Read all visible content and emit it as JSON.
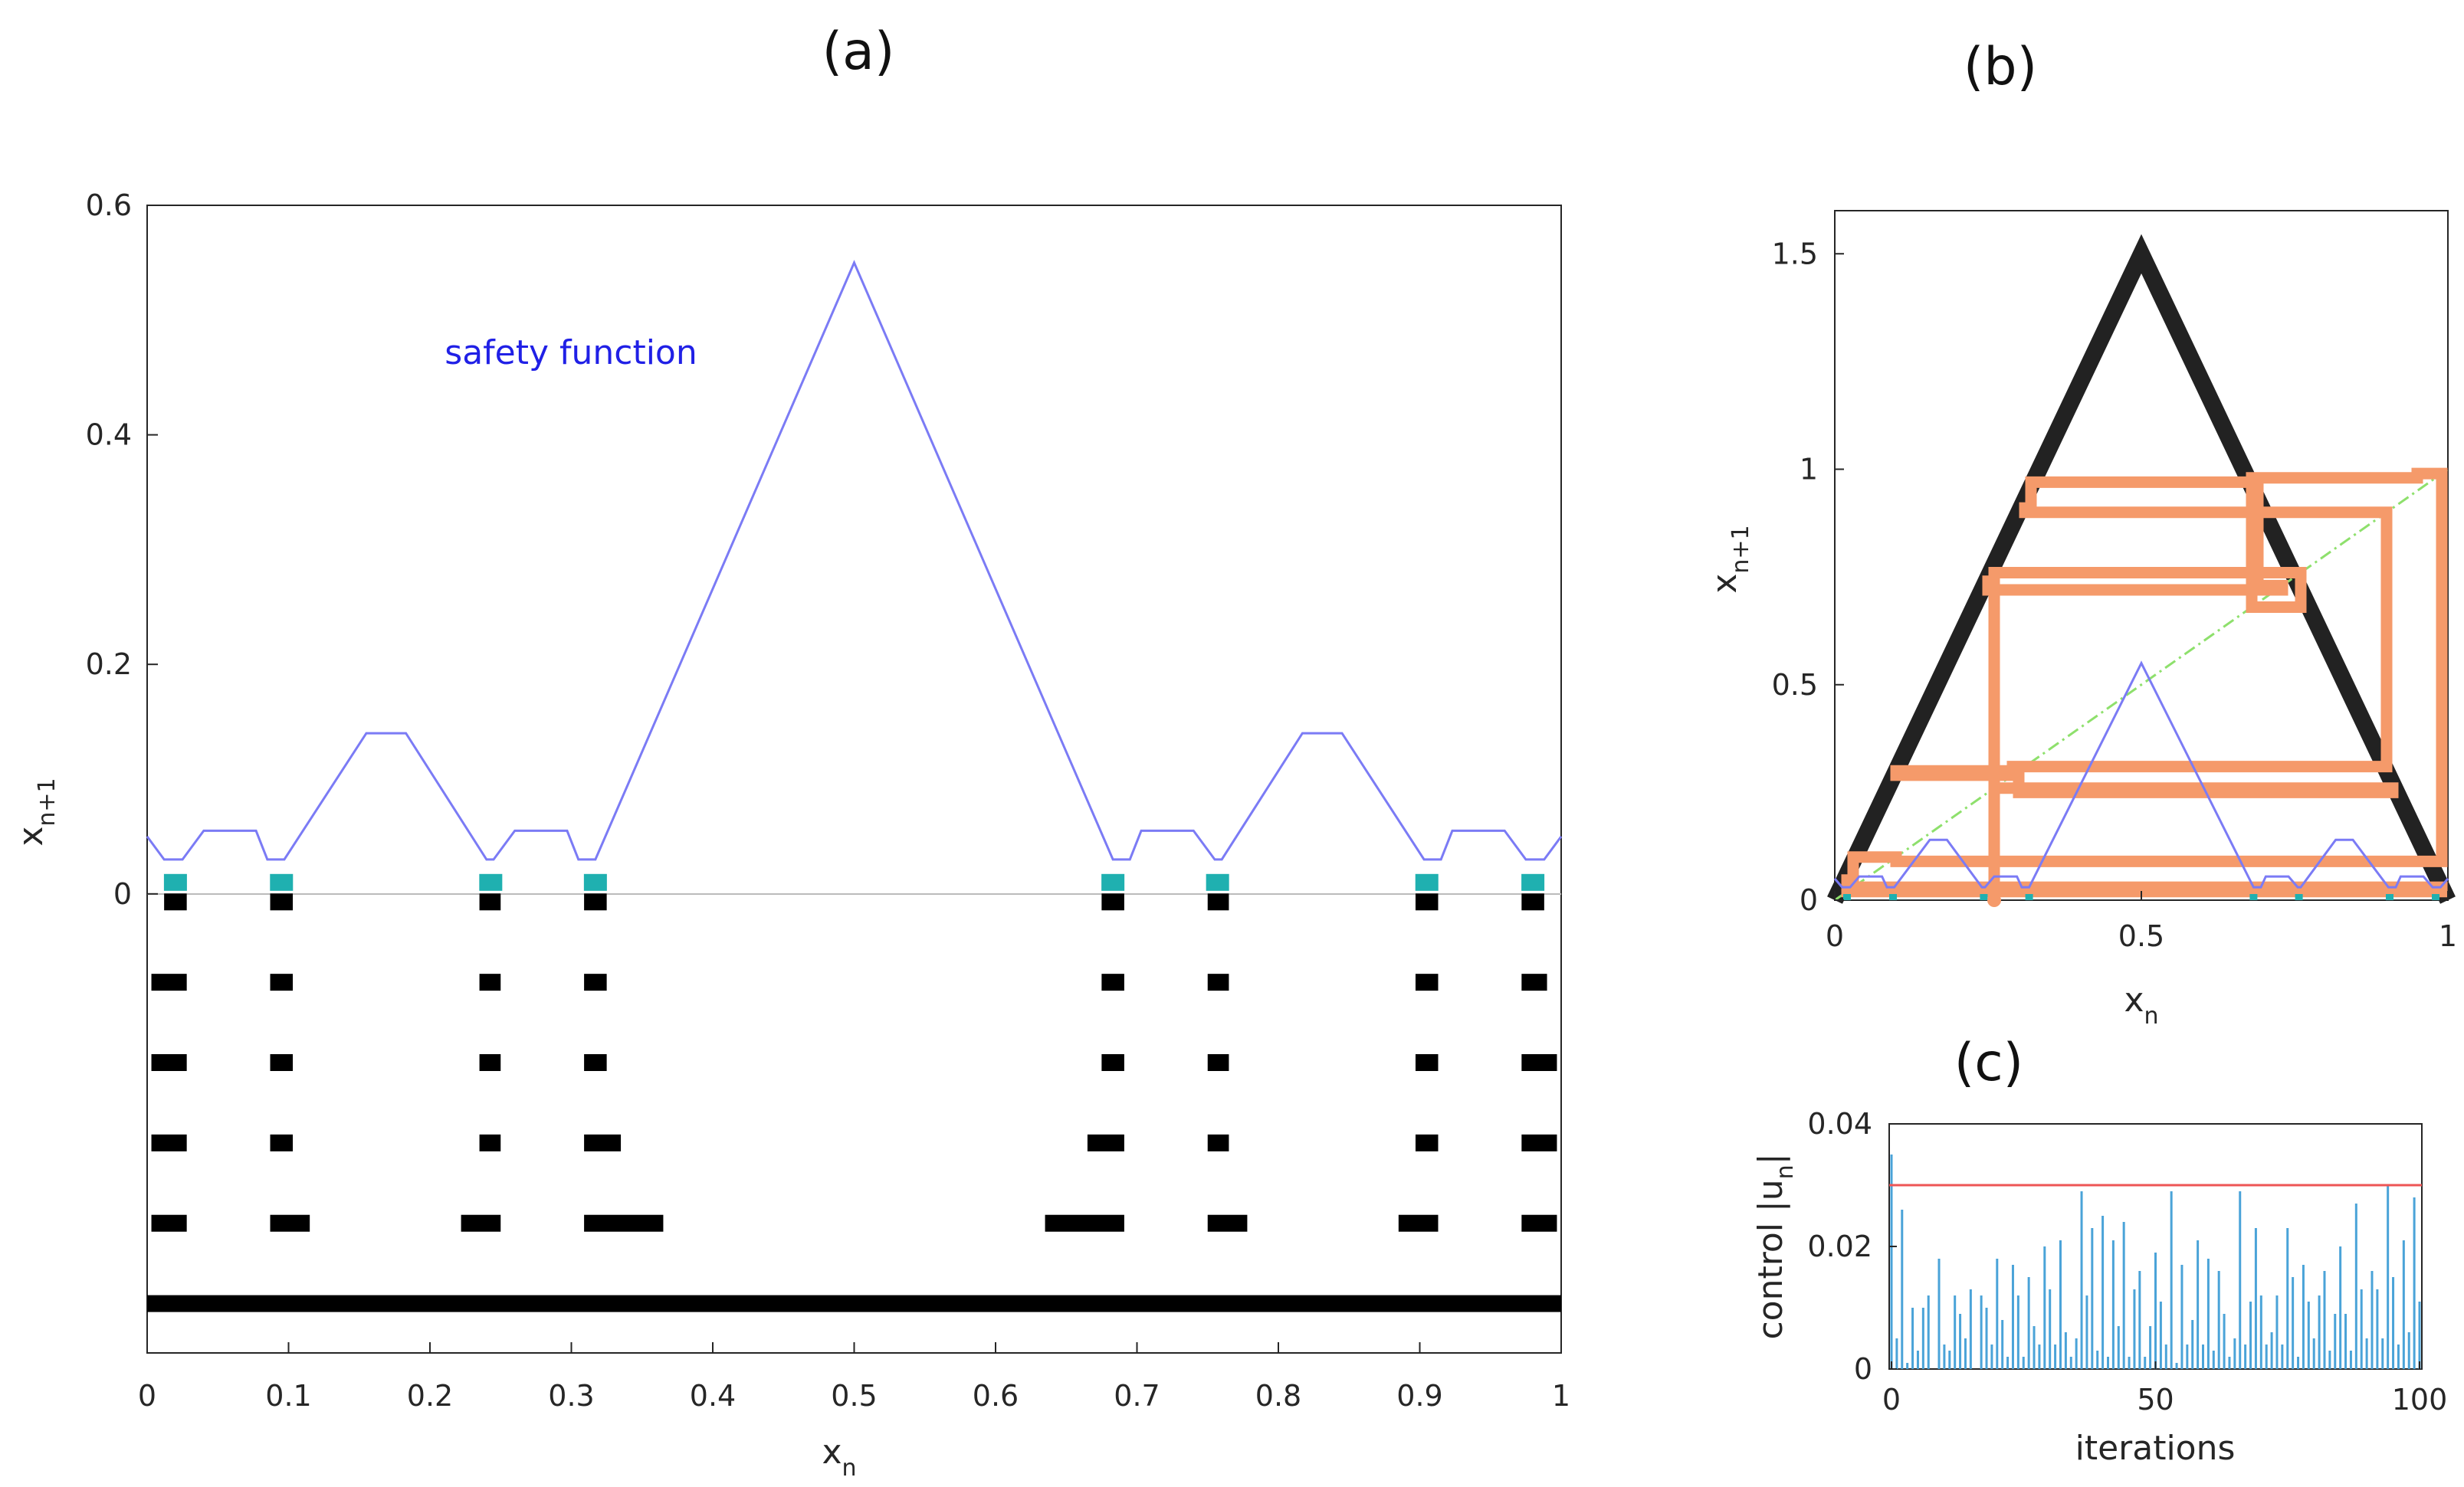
{
  "colors": {
    "axis": "#262626",
    "safety": "#7b7bf5",
    "annotation": "#2020e6",
    "black": "#000000",
    "teal": "#1fb0b0",
    "orange": "#f59a6a",
    "diag": "#8ee06c",
    "orbit": "#222222",
    "stem": "#4aa3d8",
    "limit": "#ee5555"
  },
  "chart_data": [
    {
      "panel": "(a)",
      "type": "line",
      "xlabel": "x",
      "xlabel_sub": "n",
      "ylabel": "x",
      "ylabel_sub": "n+1",
      "xlim": [
        0,
        1
      ],
      "ylim": [
        -0.4,
        0.6
      ],
      "xticks": [
        0,
        0.1,
        0.2,
        0.3,
        0.4,
        0.5,
        0.6,
        0.7,
        0.8,
        0.9,
        1
      ],
      "xtick_labels": [
        "0",
        "0.1",
        "0.2",
        "0.3",
        "0.4",
        "0.5",
        "0.6",
        "0.7",
        "0.8",
        "0.9",
        "1"
      ],
      "yticks": [
        0,
        0.2,
        0.4,
        0.6
      ],
      "ytick_labels": [
        "0",
        "0.2",
        "0.4",
        "0.6"
      ],
      "annotation": "safety function",
      "safety_function": {
        "x": [
          0,
          0.012,
          0.025,
          0.04,
          0.077,
          0.085,
          0.097,
          0.155,
          0.183,
          0.24,
          0.245,
          0.26,
          0.297,
          0.305,
          0.317,
          0.5,
          0.683,
          0.695,
          0.703,
          0.74,
          0.755,
          0.76,
          0.817,
          0.845,
          0.903,
          0.915,
          0.923,
          0.96,
          0.975,
          0.988,
          1
        ],
        "y": [
          0.05,
          0.03,
          0.03,
          0.055,
          0.055,
          0.03,
          0.03,
          0.14,
          0.14,
          0.03,
          0.03,
          0.055,
          0.055,
          0.03,
          0.03,
          0.55,
          0.03,
          0.03,
          0.055,
          0.055,
          0.03,
          0.03,
          0.14,
          0.14,
          0.03,
          0.03,
          0.055,
          0.055,
          0.03,
          0.03,
          0.05
        ]
      },
      "safe_points_x": [
        0.02,
        0.095,
        0.243,
        0.317,
        0.683,
        0.757,
        0.905,
        0.98
      ],
      "interval_rows": [
        {
          "y": -0.007,
          "intervals": [
            [
              0.012,
              0.028
            ],
            [
              0.087,
              0.103
            ],
            [
              0.235,
              0.25
            ],
            [
              0.309,
              0.325
            ],
            [
              0.675,
              0.691
            ],
            [
              0.75,
              0.765
            ],
            [
              0.897,
              0.913
            ],
            [
              0.972,
              0.988
            ]
          ]
        },
        {
          "y": -0.077,
          "intervals": [
            [
              0.003,
              0.028
            ],
            [
              0.087,
              0.103
            ],
            [
              0.235,
              0.25
            ],
            [
              0.309,
              0.325
            ],
            [
              0.675,
              0.691
            ],
            [
              0.75,
              0.765
            ],
            [
              0.897,
              0.913
            ],
            [
              0.972,
              0.99
            ]
          ]
        },
        {
          "y": -0.147,
          "intervals": [
            [
              0.003,
              0.028
            ],
            [
              0.087,
              0.103
            ],
            [
              0.235,
              0.25
            ],
            [
              0.309,
              0.325
            ],
            [
              0.675,
              0.691
            ],
            [
              0.75,
              0.765
            ],
            [
              0.897,
              0.913
            ],
            [
              0.972,
              0.997
            ]
          ]
        },
        {
          "y": -0.217,
          "intervals": [
            [
              0.003,
              0.028
            ],
            [
              0.087,
              0.103
            ],
            [
              0.235,
              0.25
            ],
            [
              0.309,
              0.335
            ],
            [
              0.665,
              0.691
            ],
            [
              0.75,
              0.765
            ],
            [
              0.897,
              0.913
            ],
            [
              0.972,
              0.997
            ]
          ]
        },
        {
          "y": -0.287,
          "intervals": [
            [
              0.003,
              0.028
            ],
            [
              0.087,
              0.115
            ],
            [
              0.222,
              0.25
            ],
            [
              0.309,
              0.365
            ],
            [
              0.635,
              0.691
            ],
            [
              0.75,
              0.778
            ],
            [
              0.885,
              0.913
            ],
            [
              0.972,
              0.997
            ]
          ]
        },
        {
          "y": -0.357,
          "intervals": [
            [
              0.0,
              1.0
            ]
          ]
        }
      ]
    },
    {
      "panel": "(b)",
      "type": "line",
      "xlabel": "x",
      "xlabel_sub": "n",
      "ylabel": "x",
      "ylabel_sub": "n+1",
      "xlim": [
        0,
        1
      ],
      "ylim": [
        0,
        1.6
      ],
      "xticks": [
        0,
        0.5,
        1
      ],
      "xtick_labels": [
        "0",
        "0.5",
        "1"
      ],
      "yticks": [
        0,
        0.5,
        1,
        1.5
      ],
      "ytick_labels": [
        "0",
        "0.5",
        "1",
        "1.5"
      ],
      "tent_map": {
        "x": [
          0,
          0.5,
          1
        ],
        "y": [
          0,
          1.5,
          0
        ]
      },
      "diagonal": {
        "x": [
          0,
          1
        ],
        "y": [
          0,
          1
        ]
      },
      "safety_function": {
        "x": [
          0,
          0.012,
          0.025,
          0.04,
          0.077,
          0.085,
          0.097,
          0.155,
          0.183,
          0.24,
          0.245,
          0.26,
          0.297,
          0.305,
          0.317,
          0.5,
          0.683,
          0.695,
          0.703,
          0.74,
          0.755,
          0.76,
          0.817,
          0.845,
          0.903,
          0.915,
          0.923,
          0.96,
          0.975,
          0.988,
          1
        ],
        "y": [
          0.05,
          0.03,
          0.03,
          0.055,
          0.055,
          0.03,
          0.03,
          0.14,
          0.14,
          0.03,
          0.03,
          0.055,
          0.055,
          0.03,
          0.03,
          0.55,
          0.03,
          0.03,
          0.055,
          0.055,
          0.03,
          0.03,
          0.14,
          0.14,
          0.03,
          0.03,
          0.055,
          0.055,
          0.03,
          0.03,
          0.05
        ]
      },
      "cobweb": {
        "x": [
          0.26,
          0.26,
          0.25,
          0.25,
          0.73,
          0.73,
          0.69,
          0.69,
          0.32,
          0.32,
          0.31,
          0.31,
          0.9,
          0.9,
          0.29,
          0.29,
          0.1,
          0.1,
          0.3,
          0.3,
          0.91,
          0.91,
          0.26,
          0.26,
          0.76,
          0.76,
          0.68,
          0.68,
          0.95,
          0.95,
          0.99,
          0.99,
          0.1,
          0.1,
          0.03,
          0.03,
          0.99,
          0.99,
          0.02,
          0.02
        ],
        "y": [
          0,
          0.74,
          0.74,
          0.72,
          0.72,
          0.73,
          0.73,
          0.97,
          0.97,
          0.91,
          0.91,
          0.9,
          0.9,
          0.31,
          0.31,
          0.3,
          0.3,
          0.29,
          0.29,
          0.25,
          0.25,
          0.26,
          0.26,
          0.76,
          0.76,
          0.68,
          0.68,
          0.98,
          0.98,
          0.99,
          0.99,
          0.09,
          0.09,
          0.1,
          0.1,
          0.03,
          0.03,
          0.02,
          0.02,
          0.06
        ]
      },
      "start_marker": {
        "x": 0.26,
        "y": 0
      }
    },
    {
      "panel": "(c)",
      "type": "bar",
      "xlabel": "iterations",
      "ylabel": "control |u",
      "ylabel_sub": "n",
      "ylabel_tail": "|",
      "xlim": [
        0,
        100
      ],
      "ylim": [
        0,
        0.04
      ],
      "xticks": [
        0,
        50,
        100
      ],
      "xtick_labels": [
        "0",
        "50",
        "100"
      ],
      "yticks": [
        0,
        0.02,
        0.04
      ],
      "ytick_labels": [
        "0",
        "0.02",
        "0.04"
      ],
      "limit": 0.03,
      "values": [
        0.035,
        0.005,
        0.026,
        0.001,
        0.01,
        0.003,
        0.01,
        0.012,
        0.0,
        0.018,
        0.004,
        0.003,
        0.012,
        0.009,
        0.005,
        0.013,
        0.0,
        0.012,
        0.01,
        0.004,
        0.018,
        0.008,
        0.002,
        0.017,
        0.012,
        0.002,
        0.015,
        0.007,
        0.004,
        0.02,
        0.013,
        0.004,
        0.021,
        0.006,
        0.002,
        0.005,
        0.029,
        0.012,
        0.023,
        0.003,
        0.025,
        0.002,
        0.021,
        0.007,
        0.024,
        0.002,
        0.013,
        0.016,
        0.002,
        0.007,
        0.019,
        0.011,
        0.004,
        0.029,
        0.001,
        0.017,
        0.004,
        0.008,
        0.021,
        0.004,
        0.018,
        0.003,
        0.016,
        0.009,
        0.002,
        0.005,
        0.029,
        0.004,
        0.011,
        0.023,
        0.012,
        0.004,
        0.006,
        0.012,
        0.004,
        0.023,
        0.015,
        0.002,
        0.017,
        0.011,
        0.005,
        0.012,
        0.016,
        0.003,
        0.009,
        0.02,
        0.009,
        0.003,
        0.027,
        0.013,
        0.005,
        0.016,
        0.013,
        0.005,
        0.03,
        0.015,
        0.004,
        0.021,
        0.006,
        0.028,
        0.011
      ]
    }
  ]
}
